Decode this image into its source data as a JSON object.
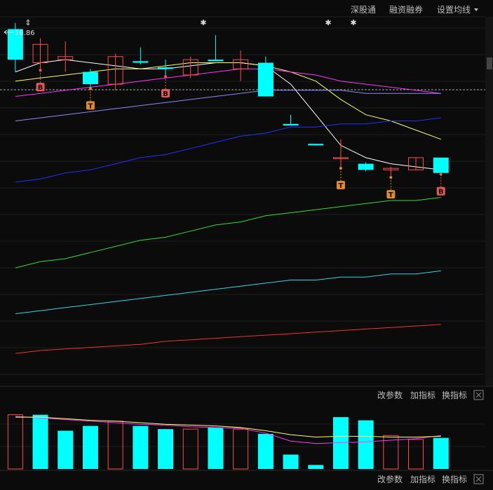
{
  "top_toolbar": {
    "shenzhen_connect": "深股通",
    "margin_trading": "融资融券",
    "set_ma": "设置均线",
    "dropdown_icon": "triangle-down"
  },
  "indicator_toolbar": {
    "change_params": "改参数",
    "add_indicator": "加指标",
    "switch_indicator": "换指标",
    "close_icon": "close-x"
  },
  "bottom_toolbar": {
    "change_params": "改参数",
    "add_indicator": "加指标",
    "switch_indicator": "换指标",
    "close_icon": "close-x"
  },
  "colors": {
    "up": "#ff4d4d",
    "down": "#00ffff",
    "signal_b": "#e05a5a",
    "signal_t": "#e08a2a",
    "ma5": "#ffffff",
    "ma10": "#ffff66",
    "ma20": "#ff33ff",
    "ma30": "#8a8aff",
    "ma60": "#2233ff",
    "ma120": "#33dd33",
    "ma250": "#33d6e6",
    "ma500": "#ee3333"
  },
  "chart_data": [
    {
      "type": "candlestick",
      "price_label": "16.86",
      "markers_top": [
        "⇕",
        "✱",
        "✱",
        "✱"
      ],
      "candles": [
        {
          "open": 16.88,
          "close": 16.78,
          "high": 16.9,
          "low": 16.74,
          "dir": "down"
        },
        {
          "open": 16.77,
          "close": 16.83,
          "high": 16.85,
          "low": 16.75,
          "dir": "up"
        },
        {
          "open": 16.79,
          "close": 16.78,
          "high": 16.84,
          "low": 16.74,
          "dir": "up"
        },
        {
          "open": 16.74,
          "close": 16.7,
          "high": 16.75,
          "low": 16.69,
          "dir": "down"
        },
        {
          "open": 16.7,
          "close": 16.79,
          "high": 16.8,
          "low": 16.68,
          "dir": "up"
        },
        {
          "open": 16.775,
          "close": 16.77,
          "high": 16.82,
          "low": 16.765,
          "dir": "down"
        },
        {
          "open": 16.755,
          "close": 16.75,
          "high": 16.78,
          "low": 16.73,
          "dir": "down"
        },
        {
          "open": 16.73,
          "close": 16.78,
          "high": 16.79,
          "low": 16.72,
          "dir": "up"
        },
        {
          "open": 16.78,
          "close": 16.775,
          "high": 16.86,
          "low": 16.775,
          "dir": "down"
        },
        {
          "open": 16.75,
          "close": 16.78,
          "high": 16.81,
          "low": 16.71,
          "dir": "up"
        },
        {
          "open": 16.77,
          "close": 16.66,
          "high": 16.79,
          "low": 16.66,
          "dir": "down"
        },
        {
          "open": 16.57,
          "close": 16.565,
          "high": 16.6,
          "low": 16.565,
          "dir": "down"
        },
        {
          "open": 16.505,
          "close": 16.5,
          "high": 16.505,
          "low": 16.5,
          "dir": "down"
        },
        {
          "open": 16.46,
          "close": 16.46,
          "high": 16.52,
          "low": 16.43,
          "dir": "up"
        },
        {
          "open": 16.44,
          "close": 16.42,
          "high": 16.445,
          "low": 16.415,
          "dir": "down"
        },
        {
          "open": 16.42,
          "close": 16.425,
          "high": 16.43,
          "low": 16.4,
          "dir": "up"
        },
        {
          "open": 16.42,
          "close": 16.46,
          "high": 16.46,
          "low": 16.42,
          "dir": "up"
        },
        {
          "open": 16.46,
          "close": 16.41,
          "high": 16.46,
          "low": 16.41,
          "dir": "down"
        }
      ],
      "signals": [
        {
          "index": 1,
          "type": "B"
        },
        {
          "index": 3,
          "type": "T"
        },
        {
          "index": 6,
          "type": "B"
        },
        {
          "index": 13,
          "type": "T"
        },
        {
          "index": 15,
          "type": "T"
        },
        {
          "index": 17,
          "type": "B"
        }
      ],
      "moving_averages": [
        {
          "key": "ma5",
          "values": [
            16.74,
            16.77,
            16.78,
            16.77,
            16.76,
            16.75,
            16.75,
            16.76,
            16.77,
            16.77,
            16.76,
            16.7,
            16.6,
            16.5,
            16.46,
            16.44,
            16.43,
            16.42
          ]
        },
        {
          "key": "ma10",
          "values": [
            16.71,
            16.72,
            16.73,
            16.74,
            16.75,
            16.75,
            16.76,
            16.77,
            16.77,
            16.77,
            16.76,
            16.74,
            16.71,
            16.65,
            16.6,
            16.58,
            16.55,
            16.52
          ]
        },
        {
          "key": "ma20",
          "values": [
            16.66,
            16.67,
            16.68,
            16.69,
            16.7,
            16.71,
            16.72,
            16.73,
            16.74,
            16.75,
            16.75,
            16.74,
            16.73,
            16.71,
            16.7,
            16.69,
            16.68,
            16.67
          ]
        },
        {
          "key": "ma30",
          "values": [
            16.58,
            16.59,
            16.6,
            16.61,
            16.62,
            16.63,
            16.64,
            16.65,
            16.66,
            16.67,
            16.68,
            16.68,
            16.68,
            16.68,
            16.67,
            16.67,
            16.67,
            16.67
          ]
        },
        {
          "key": "ma60",
          "values": [
            16.38,
            16.39,
            16.41,
            16.42,
            16.44,
            16.46,
            16.47,
            16.49,
            16.51,
            16.53,
            16.54,
            16.56,
            16.56,
            16.57,
            16.57,
            16.58,
            16.58,
            16.59
          ]
        },
        {
          "key": "ma120",
          "values": [
            16.1,
            16.12,
            16.13,
            16.15,
            16.17,
            16.19,
            16.2,
            16.22,
            16.24,
            16.25,
            16.27,
            16.28,
            16.29,
            16.3,
            16.31,
            16.32,
            16.32,
            16.33
          ]
        },
        {
          "key": "ma250",
          "values": [
            15.95,
            15.96,
            15.97,
            15.98,
            15.99,
            16.0,
            16.01,
            16.02,
            16.03,
            16.04,
            16.05,
            16.06,
            16.06,
            16.07,
            16.07,
            16.08,
            16.08,
            16.09
          ]
        },
        {
          "key": "ma500",
          "values": [
            15.82,
            15.83,
            15.835,
            15.84,
            15.845,
            15.85,
            15.86,
            15.865,
            15.87,
            15.875,
            15.88,
            15.885,
            15.89,
            15.895,
            15.9,
            15.905,
            15.91,
            15.915
          ]
        }
      ]
    },
    {
      "type": "bar",
      "volumes": [
        68,
        68,
        48,
        54,
        60,
        54,
        50,
        50,
        52,
        50,
        44,
        18,
        5,
        65,
        61,
        42,
        37,
        39
      ],
      "dirs": [
        "up",
        "down",
        "down",
        "down",
        "up",
        "down",
        "down",
        "up",
        "down",
        "up",
        "down",
        "down",
        "down",
        "down",
        "down",
        "up",
        "up",
        "down"
      ],
      "ma_a": [
        66,
        64,
        62,
        60,
        58,
        56,
        55,
        53,
        52,
        51,
        45,
        35,
        32,
        33,
        34,
        36,
        38,
        42
      ],
      "ma_b": [
        65,
        65,
        63,
        61,
        60,
        58,
        56,
        55,
        54,
        52,
        48,
        43,
        40,
        41,
        41,
        40,
        40,
        41
      ]
    }
  ]
}
